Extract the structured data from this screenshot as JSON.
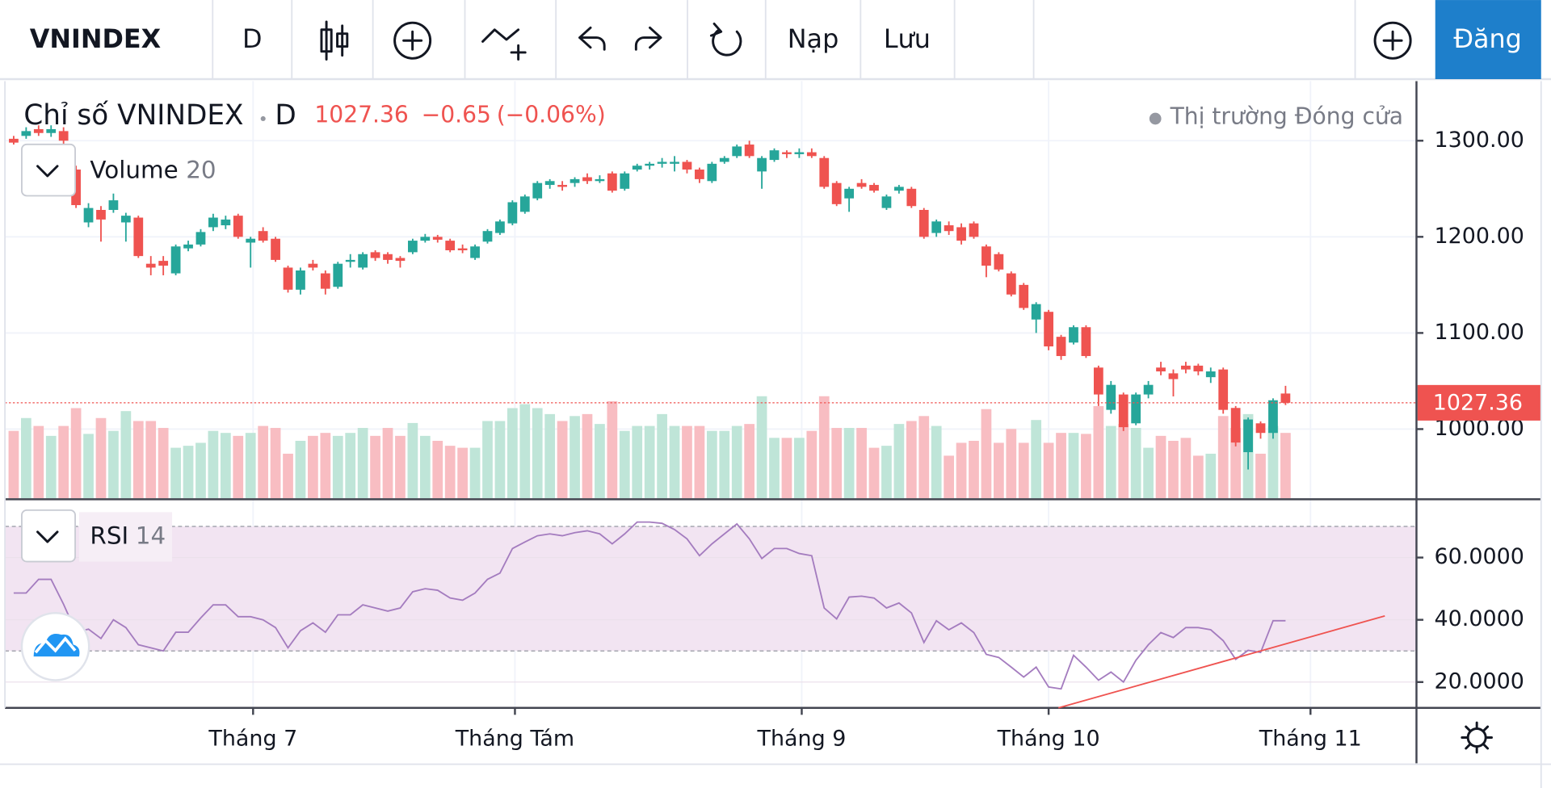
{
  "toolbar": {
    "symbol": "VNINDEX",
    "interval": "D",
    "reload": "Nạp",
    "save": "Lưu",
    "signup": "Đăng"
  },
  "header": {
    "title": "Chỉ số VNINDEX",
    "interval": "D",
    "last": "1027.36",
    "change": "−0.65",
    "change_pct": "(−0.06%)",
    "status": "Thị trường Đóng cửa"
  },
  "chart_data": [
    {
      "type": "candlestick",
      "open": [
        1302,
        1305,
        1312,
        1308,
        1310,
        1270,
        1215,
        1228,
        1228,
        1215,
        1220,
        1172,
        1175,
        1162,
        1188,
        1192,
        1210,
        1212,
        1222,
        1194,
        1206,
        1198,
        1168,
        1145,
        1172,
        1162,
        1148,
        1174,
        1168,
        1184,
        1182,
        1178,
        1184,
        1196,
        1200,
        1196,
        1188,
        1178,
        1195,
        1204,
        1214,
        1226,
        1240,
        1254,
        1254,
        1256,
        1262,
        1258,
        1266,
        1250,
        1270,
        1274,
        1276,
        1276,
        1278,
        1270,
        1258,
        1278,
        1284,
        1296,
        1268,
        1280,
        1288,
        1286,
        1288,
        1282,
        1256,
        1240,
        1256,
        1254,
        1230,
        1248,
        1250,
        1228,
        1204,
        1212,
        1210,
        1214,
        1190,
        1182,
        1162,
        1150,
        1114,
        1122,
        1096,
        1090,
        1106,
        1064,
        1020,
        1036,
        1006,
        1036,
        1064,
        1058,
        1066,
        1066,
        1054,
        1062,
        1022,
        976,
        1006,
        996,
        1037
      ],
      "high": [
        1305,
        1314,
        1316,
        1316,
        1314,
        1274,
        1235,
        1232,
        1245,
        1225,
        1222,
        1180,
        1180,
        1192,
        1196,
        1208,
        1224,
        1222,
        1224,
        1200,
        1210,
        1200,
        1170,
        1168,
        1176,
        1165,
        1174,
        1182,
        1184,
        1186,
        1184,
        1180,
        1198,
        1203,
        1202,
        1198,
        1192,
        1192,
        1208,
        1218,
        1238,
        1244,
        1258,
        1260,
        1258,
        1262,
        1266,
        1264,
        1268,
        1268,
        1276,
        1278,
        1282,
        1284,
        1280,
        1272,
        1278,
        1284,
        1296,
        1300,
        1284,
        1292,
        1290,
        1292,
        1292,
        1284,
        1258,
        1252,
        1260,
        1256,
        1244,
        1254,
        1252,
        1230,
        1218,
        1216,
        1214,
        1216,
        1192,
        1184,
        1164,
        1152,
        1132,
        1124,
        1098,
        1108,
        1108,
        1066,
        1050,
        1038,
        1038,
        1050,
        1070,
        1062,
        1070,
        1068,
        1064,
        1064,
        1024,
        1012,
        1008,
        1032,
        1045
      ],
      "low": [
        1296,
        1302,
        1305,
        1304,
        1296,
        1230,
        1210,
        1195,
        1225,
        1195,
        1178,
        1160,
        1160,
        1160,
        1185,
        1190,
        1206,
        1208,
        1198,
        1168,
        1194,
        1174,
        1142,
        1140,
        1165,
        1140,
        1146,
        1168,
        1166,
        1175,
        1172,
        1168,
        1182,
        1194,
        1194,
        1184,
        1183,
        1176,
        1193,
        1202,
        1212,
        1224,
        1238,
        1250,
        1248,
        1252,
        1255,
        1256,
        1246,
        1248,
        1268,
        1270,
        1272,
        1268,
        1266,
        1256,
        1256,
        1276,
        1282,
        1282,
        1250,
        1278,
        1282,
        1282,
        1282,
        1250,
        1232,
        1226,
        1250,
        1246,
        1228,
        1245,
        1230,
        1198,
        1200,
        1202,
        1192,
        1198,
        1158,
        1164,
        1138,
        1124,
        1100,
        1082,
        1072,
        1088,
        1074,
        1024,
        1016,
        998,
        1004,
        1032,
        1056,
        1034,
        1058,
        1056,
        1048,
        1016,
        982,
        958,
        990,
        990,
        1025
      ],
      "close": [
        1298,
        1310,
        1308,
        1312,
        1300,
        1233,
        1230,
        1218,
        1238,
        1222,
        1180,
        1168,
        1170,
        1190,
        1192,
        1205,
        1220,
        1218,
        1200,
        1198,
        1196,
        1176,
        1145,
        1165,
        1168,
        1146,
        1172,
        1176,
        1182,
        1178,
        1176,
        1175,
        1196,
        1200,
        1197,
        1186,
        1186,
        1190,
        1206,
        1216,
        1236,
        1242,
        1256,
        1258,
        1252,
        1260,
        1258,
        1260,
        1248,
        1266,
        1274,
        1276,
        1278,
        1278,
        1270,
        1260,
        1276,
        1282,
        1294,
        1284,
        1282,
        1290,
        1286,
        1288,
        1284,
        1252,
        1234,
        1250,
        1252,
        1248,
        1242,
        1252,
        1232,
        1200,
        1216,
        1206,
        1196,
        1200,
        1170,
        1166,
        1140,
        1126,
        1130,
        1086,
        1076,
        1106,
        1076,
        1036,
        1046,
        1002,
        1036,
        1046,
        1060,
        1052,
        1062,
        1060,
        1060,
        1020,
        986,
        1010,
        996,
        1030,
        1027.36
      ],
      "up_color": "#26a69a",
      "down_color": "#ef5350",
      "ylim": [
        928,
        1362
      ],
      "yticks": [
        {
          "value": 1000,
          "label": "1000.00"
        },
        {
          "value": 1100,
          "label": "1100.00"
        },
        {
          "value": 1200,
          "label": "1200.00"
        },
        {
          "value": 1300,
          "label": "1300.00"
        }
      ],
      "xlim": [
        -0.7,
        112.5
      ],
      "xticks": [
        {
          "value": 19.2,
          "label": "Tháng 7"
        },
        {
          "value": 40.2,
          "label": "Tháng Tám"
        },
        {
          "value": 63.2,
          "label": "Tháng 9"
        },
        {
          "value": 83,
          "label": "Tháng 10"
        },
        {
          "value": 104,
          "label": "Tháng 11"
        }
      ],
      "grid": true
    },
    {
      "type": "bar",
      "title": "Volume",
      "length": 20,
      "values": [
        68,
        81,
        73,
        63,
        73,
        91,
        65,
        81,
        68,
        88,
        78,
        78,
        71,
        51,
        53,
        56,
        68,
        66,
        63,
        66,
        73,
        71,
        45,
        58,
        63,
        66,
        63,
        66,
        71,
        63,
        71,
        63,
        76,
        63,
        58,
        53,
        51,
        51,
        78,
        78,
        91,
        95,
        91,
        85,
        78,
        83,
        85,
        75,
        98,
        68,
        73,
        73,
        85,
        73,
        73,
        73,
        68,
        68,
        73,
        75,
        103,
        61,
        61,
        61,
        68,
        103,
        71,
        71,
        71,
        51,
        53,
        75,
        78,
        83,
        73,
        43,
        56,
        58,
        90,
        56,
        70,
        56,
        79,
        56,
        66,
        66,
        65,
        93,
        73,
        75,
        71,
        51,
        63,
        58,
        61,
        43,
        45,
        83,
        71,
        85,
        45,
        73,
        66
      ],
      "up_color": "#bfe5d8",
      "down_color": "#f8bdc2",
      "ylim": [
        0,
        421
      ]
    },
    {
      "type": "line",
      "title": "RSI",
      "length": 14,
      "values": [
        48.6,
        48.6,
        53,
        53,
        45,
        36,
        37,
        34,
        40,
        37.5,
        32,
        31,
        30,
        36,
        36,
        40.6,
        44.8,
        44.8,
        41,
        41,
        40,
        37.5,
        31,
        36.5,
        39,
        36,
        41.6,
        41.6,
        44.8,
        43.8,
        42.8,
        43.8,
        49,
        50,
        49.5,
        47,
        46.3,
        48.6,
        53,
        55,
        62.9,
        65,
        67,
        67.6,
        67,
        68,
        68.6,
        67.6,
        64.4,
        67.6,
        71.4,
        71.4,
        71,
        69,
        66,
        60.6,
        64.4,
        67.6,
        70.8,
        66,
        59.7,
        62.9,
        62.9,
        61.3,
        60.6,
        43.8,
        40.3,
        47.3,
        47.6,
        47,
        43.8,
        45.4,
        42.2,
        32.7,
        39.7,
        36.8,
        39,
        35.9,
        28.9,
        27.9,
        24.8,
        21.6,
        24.8,
        18.4,
        17.8,
        28.6,
        24.8,
        20.6,
        23.2,
        20,
        27,
        32,
        35.9,
        34.3,
        37.5,
        37.5,
        36.8,
        33.3,
        27.3,
        30.2,
        29.5,
        39.7,
        39.7
      ],
      "color": "#a47cbf",
      "band": [
        70,
        30
      ],
      "band_color": "#f2e4f2",
      "ylim": [
        11.7,
        78.4
      ],
      "yticks": [
        {
          "value": 20,
          "label": "20.0000"
        },
        {
          "value": 40,
          "label": "40.0000"
        },
        {
          "value": 60,
          "label": "60.0000"
        }
      ]
    }
  ]
}
